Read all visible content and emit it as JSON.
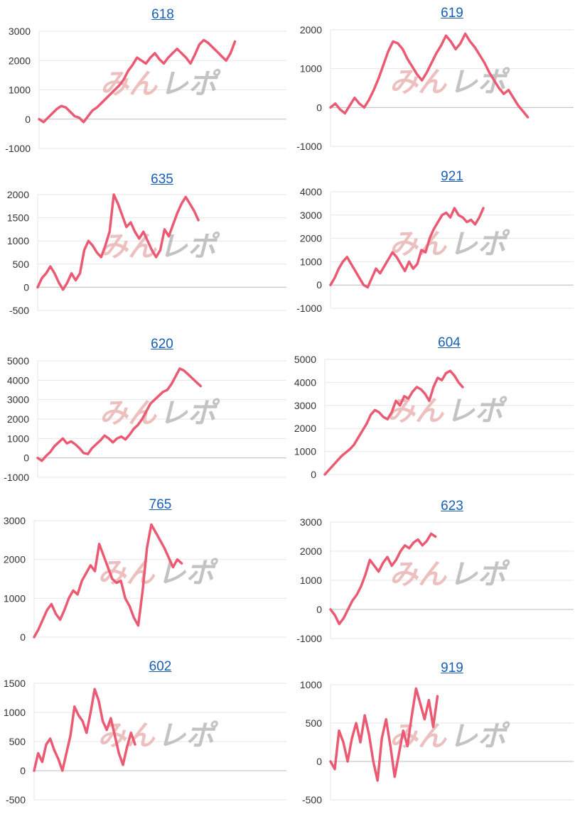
{
  "watermark_text": "みんレポ",
  "colors": {
    "line": "#ea5a73",
    "grid": "#e6e6e6",
    "axis": "#c8c8c8",
    "title": "#1a5fb4",
    "watermark_pink": "#eab4b4",
    "watermark_gray": "#b9b9b9"
  },
  "chart_data": [
    {
      "type": "line",
      "title": "618",
      "ylim": [
        -1000,
        3000
      ],
      "yticks": [
        3000,
        2000,
        1000,
        0,
        -1000
      ],
      "grid": true,
      "legend": "none",
      "x": [
        0,
        0.02,
        0.04,
        0.06,
        0.08,
        0.1,
        0.12,
        0.14,
        0.16,
        0.18,
        0.2,
        0.22,
        0.24,
        0.26,
        0.28,
        0.3,
        0.32,
        0.34,
        0.36,
        0.38,
        0.4,
        0.42,
        0.44,
        0.46,
        0.48,
        0.5,
        0.52,
        0.54,
        0.56,
        0.58,
        0.6,
        0.62,
        0.64,
        0.66,
        0.68,
        0.7,
        0.72,
        0.74,
        0.76,
        0.78,
        0.8,
        0.82,
        0.84,
        0.86,
        0.88,
        0.9,
        0.92,
        0.94,
        0.96,
        0.98,
        1.0
      ],
      "y": [
        0,
        -100,
        50,
        200,
        350,
        450,
        400,
        250,
        100,
        50,
        -100,
        100,
        300,
        400,
        550,
        700,
        850,
        1000,
        1150,
        1350,
        1650,
        1850,
        2100,
        2000,
        1900,
        2100,
        2250,
        2050,
        1900,
        2100,
        2250,
        2400,
        2250,
        2100,
        1900,
        2200,
        2550,
        2700,
        2600,
        2450,
        2300,
        2150,
        2000,
        2250,
        2650,
        null,
        null,
        null,
        null,
        null,
        null
      ]
    },
    {
      "type": "line",
      "title": "619",
      "ylim": [
        -1000,
        2000
      ],
      "yticks": [
        2000,
        1000,
        0,
        -1000
      ],
      "grid": true,
      "legend": "none",
      "x": [
        0,
        0.02,
        0.04,
        0.06,
        0.08,
        0.1,
        0.12,
        0.14,
        0.16,
        0.18,
        0.2,
        0.22,
        0.24,
        0.26,
        0.28,
        0.3,
        0.32,
        0.34,
        0.36,
        0.38,
        0.4,
        0.42,
        0.44,
        0.46,
        0.48,
        0.5,
        0.52,
        0.54,
        0.56,
        0.58,
        0.6,
        0.62,
        0.64,
        0.66,
        0.68,
        0.7,
        0.72,
        0.74,
        0.76,
        0.78,
        0.8,
        0.82,
        0.84,
        0.86,
        0.88,
        0.9,
        0.92,
        0.94,
        0.96,
        0.98,
        1.0
      ],
      "y": [
        0,
        100,
        -50,
        -150,
        50,
        250,
        100,
        0,
        200,
        450,
        750,
        1100,
        1450,
        1700,
        1650,
        1500,
        1250,
        1050,
        850,
        700,
        900,
        1150,
        1400,
        1600,
        1850,
        1700,
        1500,
        1650,
        1900,
        1700,
        1550,
        1350,
        1150,
        900,
        700,
        500,
        350,
        450,
        250,
        50,
        -100,
        -250,
        null,
        null,
        null,
        null,
        null,
        null,
        null,
        null,
        null
      ]
    },
    {
      "type": "line",
      "title": "635",
      "ylim": [
        -500,
        2000
      ],
      "yticks": [
        2000,
        1500,
        1000,
        500,
        0,
        -500
      ],
      "grid": true,
      "legend": "none",
      "x": [
        0,
        0.02,
        0.04,
        0.06,
        0.08,
        0.1,
        0.12,
        0.14,
        0.16,
        0.18,
        0.2,
        0.22,
        0.24,
        0.26,
        0.28,
        0.3,
        0.32,
        0.34,
        0.36,
        0.38,
        0.4,
        0.42,
        0.44,
        0.46,
        0.48,
        0.5,
        0.52,
        0.54,
        0.56,
        0.58,
        0.6,
        0.62,
        0.64,
        0.66,
        0.68,
        0.7,
        0.72,
        0.74,
        0.76,
        0.78,
        0.8,
        0.82,
        0.84,
        0.86,
        0.88,
        0.9,
        0.92,
        0.94,
        0.96,
        0.98,
        1.0
      ],
      "y": [
        0,
        200,
        300,
        450,
        300,
        100,
        -50,
        100,
        300,
        150,
        300,
        800,
        1000,
        900,
        750,
        650,
        900,
        1200,
        2000,
        1800,
        1550,
        1300,
        1400,
        1200,
        1050,
        1200,
        1000,
        800,
        650,
        800,
        1250,
        1100,
        1350,
        1600,
        1800,
        1950,
        1800,
        1650,
        1450,
        null,
        null,
        null,
        null,
        null,
        null,
        null,
        null,
        null,
        null,
        null,
        null
      ]
    },
    {
      "type": "line",
      "title": "921",
      "ylim": [
        -1000,
        4000
      ],
      "yticks": [
        4000,
        3000,
        2000,
        1000,
        0,
        -1000
      ],
      "grid": true,
      "legend": "none",
      "x": [
        0,
        0.02,
        0.04,
        0.06,
        0.08,
        0.1,
        0.12,
        0.14,
        0.16,
        0.18,
        0.2,
        0.22,
        0.24,
        0.26,
        0.28,
        0.3,
        0.32,
        0.34,
        0.36,
        0.38,
        0.4,
        0.42,
        0.44,
        0.46,
        0.48,
        0.5,
        0.52,
        0.54,
        0.56,
        0.58,
        0.6,
        0.62,
        0.64,
        0.66,
        0.68,
        0.7,
        0.72,
        0.74,
        0.76,
        0.78,
        0.8,
        0.82,
        0.84,
        0.86,
        0.88,
        0.9,
        0.92,
        0.94,
        0.96,
        0.98,
        1.0
      ],
      "y": [
        0,
        300,
        700,
        1000,
        1200,
        900,
        600,
        300,
        0,
        -100,
        300,
        700,
        500,
        800,
        1100,
        1400,
        1200,
        900,
        600,
        1000,
        700,
        900,
        1500,
        1400,
        2000,
        2400,
        2700,
        3000,
        3100,
        2900,
        3300,
        3000,
        2900,
        2700,
        2800,
        2600,
        2900,
        3300,
        null,
        null,
        null,
        null,
        null,
        null,
        null,
        null,
        null,
        null,
        null,
        null,
        null
      ]
    },
    {
      "type": "line",
      "title": "620",
      "ylim": [
        -1000,
        5000
      ],
      "yticks": [
        5000,
        4000,
        3000,
        2000,
        1000,
        0,
        -1000
      ],
      "grid": true,
      "legend": "none",
      "x": [
        0,
        0.02,
        0.04,
        0.06,
        0.08,
        0.1,
        0.12,
        0.14,
        0.16,
        0.18,
        0.2,
        0.22,
        0.24,
        0.26,
        0.28,
        0.3,
        0.32,
        0.34,
        0.36,
        0.38,
        0.4,
        0.42,
        0.44,
        0.46,
        0.48,
        0.5,
        0.52,
        0.54,
        0.56,
        0.58,
        0.6,
        0.62,
        0.64,
        0.66,
        0.68,
        0.7,
        0.72,
        0.74,
        0.76,
        0.78,
        0.8,
        0.82,
        0.84,
        0.86,
        0.88,
        0.9,
        0.92,
        0.94,
        0.96,
        0.98,
        1.0
      ],
      "y": [
        0,
        -150,
        100,
        300,
        600,
        800,
        1000,
        750,
        850,
        700,
        500,
        250,
        200,
        500,
        700,
        900,
        1150,
        1000,
        800,
        1000,
        1100,
        950,
        1200,
        1500,
        1700,
        2000,
        2400,
        2800,
        3000,
        3200,
        3400,
        3500,
        3800,
        4200,
        4600,
        4500,
        4300,
        4100,
        3900,
        3700,
        null,
        null,
        null,
        null,
        null,
        null,
        null,
        null,
        null,
        null,
        null
      ]
    },
    {
      "type": "line",
      "title": "604",
      "ylim": [
        0,
        5000
      ],
      "yticks": [
        5000,
        4000,
        3000,
        2000,
        1000,
        0
      ],
      "grid": true,
      "legend": "none",
      "x": [
        0,
        0.02,
        0.04,
        0.06,
        0.08,
        0.1,
        0.12,
        0.14,
        0.16,
        0.18,
        0.2,
        0.22,
        0.24,
        0.26,
        0.28,
        0.3,
        0.32,
        0.34,
        0.36,
        0.38,
        0.4,
        0.42,
        0.44,
        0.46,
        0.48,
        0.5,
        0.52,
        0.54,
        0.56,
        0.58,
        0.6,
        0.62,
        0.64,
        0.66,
        0.68,
        0.7,
        0.72,
        0.74,
        0.76,
        0.78,
        0.8,
        0.82,
        0.84,
        0.86,
        0.88,
        0.9,
        0.92,
        0.94,
        0.96,
        0.98,
        1.0
      ],
      "y": [
        0,
        200,
        400,
        600,
        800,
        950,
        1100,
        1300,
        1600,
        1900,
        2200,
        2600,
        2800,
        2700,
        2500,
        2400,
        2700,
        3200,
        3000,
        3400,
        3300,
        3600,
        3800,
        3700,
        3500,
        3200,
        3800,
        4200,
        4100,
        4400,
        4500,
        4300,
        4000,
        3800,
        null,
        null,
        null,
        null,
        null,
        null,
        null,
        null,
        null,
        null,
        null,
        null,
        null,
        null,
        null,
        null,
        null
      ]
    },
    {
      "type": "line",
      "title": "765",
      "ylim": [
        0,
        3000
      ],
      "yticks": [
        3000,
        2000,
        1000,
        0
      ],
      "grid": true,
      "legend": "none",
      "x": [
        0,
        0.02,
        0.04,
        0.06,
        0.08,
        0.1,
        0.12,
        0.14,
        0.16,
        0.18,
        0.2,
        0.22,
        0.24,
        0.26,
        0.28,
        0.3,
        0.32,
        0.34,
        0.36,
        0.38,
        0.4,
        0.42,
        0.44,
        0.46,
        0.48,
        0.5,
        0.52,
        0.54,
        0.56,
        0.58,
        0.6,
        0.62,
        0.64,
        0.66,
        0.68,
        0.7,
        0.72,
        0.74,
        0.76,
        0.78,
        0.8,
        0.82,
        0.84,
        0.86,
        0.88,
        0.9,
        0.92,
        0.94,
        0.96,
        0.98,
        1.0
      ],
      "y": [
        0,
        200,
        450,
        700,
        850,
        600,
        450,
        700,
        1000,
        1200,
        1100,
        1450,
        1650,
        1850,
        1700,
        2400,
        2100,
        1800,
        1500,
        1400,
        1450,
        1000,
        800,
        500,
        300,
        1200,
        2300,
        2900,
        2700,
        2500,
        2300,
        2050,
        1800,
        2000,
        1900,
        null,
        null,
        null,
        null,
        null,
        null,
        null,
        null,
        null,
        null,
        null,
        null,
        null,
        null,
        null,
        null
      ]
    },
    {
      "type": "line",
      "title": "623",
      "ylim": [
        -1000,
        3000
      ],
      "yticks": [
        3000,
        2000,
        1000,
        0,
        -1000
      ],
      "grid": true,
      "legend": "none",
      "x": [
        0,
        0.02,
        0.04,
        0.06,
        0.08,
        0.1,
        0.12,
        0.14,
        0.16,
        0.18,
        0.2,
        0.22,
        0.24,
        0.26,
        0.28,
        0.3,
        0.32,
        0.34,
        0.36,
        0.38,
        0.4,
        0.42,
        0.44,
        0.46,
        0.48,
        0.5,
        0.52,
        0.54,
        0.56,
        0.58,
        0.6,
        0.62,
        0.64,
        0.66,
        0.68,
        0.7,
        0.72,
        0.74,
        0.76,
        0.78,
        0.8,
        0.82,
        0.84,
        0.86,
        0.88,
        0.9,
        0.92,
        0.94,
        0.96,
        0.98,
        1.0
      ],
      "y": [
        0,
        -200,
        -500,
        -300,
        0,
        300,
        500,
        800,
        1200,
        1700,
        1500,
        1300,
        1600,
        1800,
        1500,
        1700,
        2000,
        2200,
        2100,
        2300,
        2400,
        2200,
        2350,
        2600,
        2500,
        null,
        null,
        null,
        null,
        null,
        null,
        null,
        null,
        null,
        null,
        null,
        null,
        null,
        null,
        null,
        null,
        null,
        null,
        null,
        null,
        null,
        null,
        null,
        null,
        null,
        null
      ]
    },
    {
      "type": "line",
      "title": "602",
      "ylim": [
        -500,
        1500
      ],
      "yticks": [
        1500,
        1000,
        500,
        0,
        -500
      ],
      "grid": true,
      "legend": "none",
      "x": [
        0,
        0.02,
        0.04,
        0.06,
        0.08,
        0.1,
        0.12,
        0.14,
        0.16,
        0.18,
        0.2,
        0.22,
        0.24,
        0.26,
        0.28,
        0.3,
        0.32,
        0.34,
        0.36,
        0.38,
        0.4,
        0.42,
        0.44,
        0.46,
        0.48,
        0.5,
        0.52,
        0.54,
        0.56,
        0.58,
        0.6,
        0.62,
        0.64,
        0.66,
        0.68,
        0.7,
        0.72,
        0.74,
        0.76,
        0.78,
        0.8,
        0.82,
        0.84,
        0.86,
        0.88,
        0.9,
        0.92,
        0.94,
        0.96,
        0.98,
        1.0
      ],
      "y": [
        0,
        300,
        150,
        450,
        550,
        350,
        200,
        0,
        300,
        600,
        1100,
        950,
        850,
        650,
        1000,
        1400,
        1200,
        850,
        700,
        900,
        600,
        300,
        100,
        400,
        650,
        450,
        null,
        null,
        null,
        null,
        null,
        null,
        null,
        null,
        null,
        null,
        null,
        null,
        null,
        null,
        null,
        null,
        null,
        null,
        null,
        null,
        null,
        null,
        null,
        null,
        null
      ]
    },
    {
      "type": "line",
      "title": "919",
      "ylim": [
        -500,
        1000
      ],
      "yticks": [
        1000,
        500,
        0,
        -500
      ],
      "grid": true,
      "legend": "none",
      "x": [
        0,
        0.02,
        0.04,
        0.06,
        0.08,
        0.1,
        0.12,
        0.14,
        0.16,
        0.18,
        0.2,
        0.22,
        0.24,
        0.26,
        0.28,
        0.3,
        0.32,
        0.34,
        0.36,
        0.38,
        0.4,
        0.42,
        0.44,
        0.46,
        0.48,
        0.5,
        0.52,
        0.54,
        0.56,
        0.58,
        0.6,
        0.62,
        0.64,
        0.66,
        0.68,
        0.7,
        0.72,
        0.74,
        0.76,
        0.78,
        0.8,
        0.82,
        0.84,
        0.86,
        0.88,
        0.9,
        0.92,
        0.94,
        0.96,
        0.98,
        1.0
      ],
      "y": [
        0,
        -100,
        400,
        250,
        0,
        300,
        500,
        250,
        600,
        350,
        0,
        -250,
        300,
        550,
        200,
        -200,
        100,
        400,
        200,
        600,
        950,
        750,
        550,
        800,
        450,
        850,
        null,
        null,
        null,
        null,
        null,
        null,
        null,
        null,
        null,
        null,
        null,
        null,
        null,
        null,
        null,
        null,
        null,
        null,
        null,
        null,
        null,
        null,
        null,
        null,
        null
      ]
    }
  ]
}
